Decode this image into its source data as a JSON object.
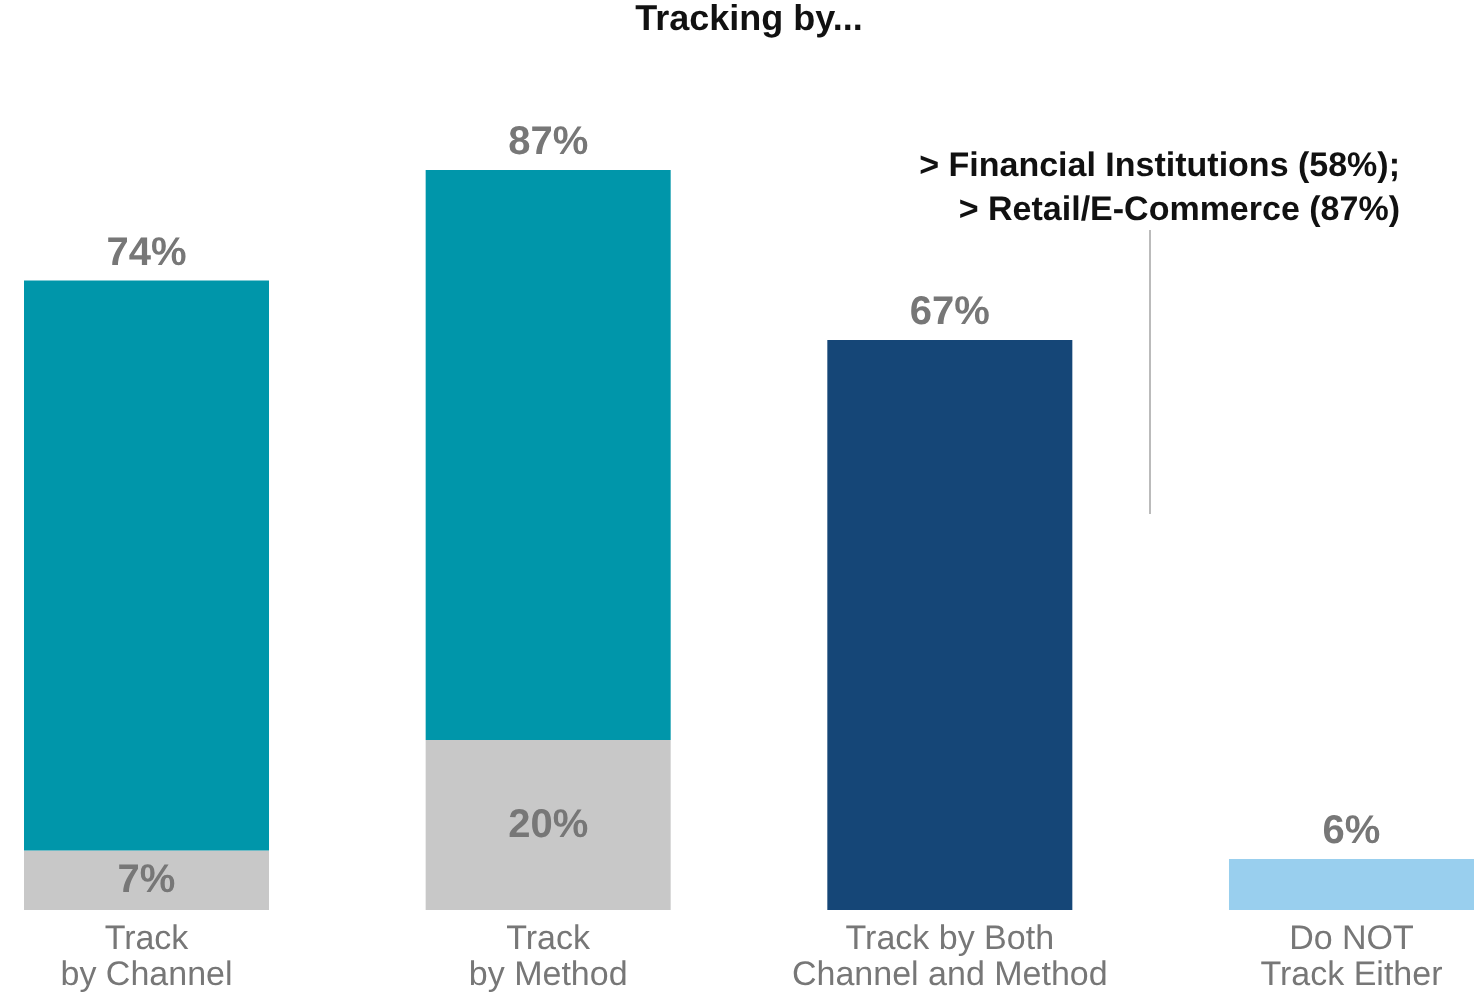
{
  "chart_data": {
    "type": "bar",
    "title": "Tracking by...",
    "stacked": true,
    "tick_labels": "x",
    "grid": false,
    "categories": [
      "Track\nby Channel",
      "Track\nby Method",
      "Track by Both\nChannel and Method",
      "Do NOT\nTrack Either"
    ],
    "series": [
      {
        "color": "#c8c8c8",
        "values": [
          7,
          20,
          null,
          null
        ],
        "value_labels": [
          "7%",
          "20%",
          null,
          null
        ]
      },
      {
        "colors": [
          "#0096aa",
          "#0096aa",
          "#154677",
          "#99cfee"
        ],
        "values": [
          67,
          67,
          67,
          6
        ]
      }
    ],
    "totals": [
      "74%",
      "87%",
      "67%",
      "6%"
    ],
    "annotations": [
      "> Financial Institutions (58%);\n> Retail/E-Commerce (87%)"
    ]
  }
}
